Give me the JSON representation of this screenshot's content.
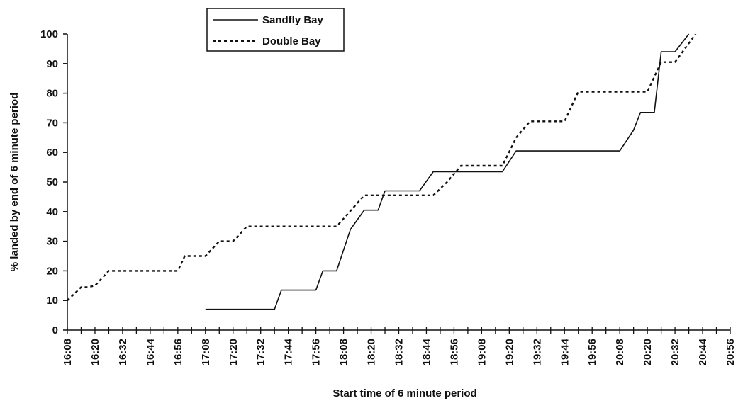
{
  "chart_data": {
    "type": "line",
    "xlabel": "Start time of 6 minute period",
    "ylabel": "% landed by end of 6 minute period",
    "ylim": [
      0,
      100
    ],
    "yticks": [
      0,
      10,
      20,
      30,
      40,
      50,
      60,
      70,
      80,
      90,
      100
    ],
    "xticks": [
      "16:08",
      "16:20",
      "16:32",
      "16:44",
      "16:56",
      "17:08",
      "17:20",
      "17:32",
      "17:44",
      "17:56",
      "18:08",
      "18:20",
      "18:32",
      "18:44",
      "18:56",
      "19:08",
      "19:20",
      "19:32",
      "19:44",
      "19:56",
      "20:08",
      "20:20",
      "20:32",
      "20:44",
      "20:56"
    ],
    "xlim": [
      "16:08",
      "20:56"
    ],
    "grid": false,
    "legend": "top-center",
    "series": [
      {
        "name": "Sandfly Bay",
        "style": "solid",
        "color": "#111111",
        "points": [
          [
            "17:08",
            7
          ],
          [
            "17:38",
            7
          ],
          [
            "17:41",
            13.5
          ],
          [
            "17:56",
            13.5
          ],
          [
            "17:59",
            20
          ],
          [
            "18:05",
            20
          ],
          [
            "18:11",
            34
          ],
          [
            "18:17",
            40.5
          ],
          [
            "18:23",
            40.5
          ],
          [
            "18:26",
            47
          ],
          [
            "18:41",
            47
          ],
          [
            "18:47",
            53.5
          ],
          [
            "19:17",
            53.5
          ],
          [
            "19:23",
            60.5
          ],
          [
            "20:08",
            60.5
          ],
          [
            "20:14",
            67.5
          ],
          [
            "20:17",
            73.5
          ],
          [
            "20:23",
            73.5
          ],
          [
            "20:26",
            94
          ],
          [
            "20:32",
            94
          ],
          [
            "20:38",
            100
          ]
        ]
      },
      {
        "name": "Double Bay",
        "style": "dotted",
        "color": "#111111",
        "points": [
          [
            "16:08",
            10
          ],
          [
            "16:14",
            14.5
          ],
          [
            "16:17",
            14.5
          ],
          [
            "16:20",
            15
          ],
          [
            "16:26",
            20
          ],
          [
            "16:56",
            20
          ],
          [
            "16:59",
            25
          ],
          [
            "17:08",
            25
          ],
          [
            "17:14",
            30
          ],
          [
            "17:20",
            30
          ],
          [
            "17:26",
            35
          ],
          [
            "18:05",
            35
          ],
          [
            "18:17",
            45.5
          ],
          [
            "18:47",
            45.5
          ],
          [
            "18:53",
            50
          ],
          [
            "18:59",
            55.5
          ],
          [
            "19:17",
            55.5
          ],
          [
            "19:23",
            65
          ],
          [
            "19:29",
            70.5
          ],
          [
            "19:44",
            70.5
          ],
          [
            "19:50",
            80.5
          ],
          [
            "20:20",
            80.5
          ],
          [
            "20:26",
            90.5
          ],
          [
            "20:32",
            90.5
          ],
          [
            "20:41",
            100
          ]
        ]
      }
    ]
  }
}
